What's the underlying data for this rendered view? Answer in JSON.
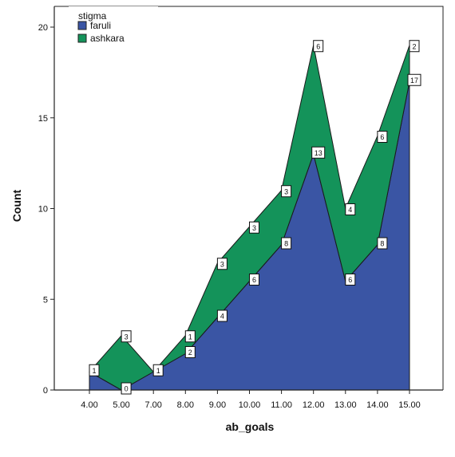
{
  "chart_data": {
    "type": "area",
    "stacked": true,
    "xlabel": "ab_goals",
    "ylabel": "Count",
    "ylim": [
      0,
      20
    ],
    "yticks": [
      "0",
      "5",
      "10",
      "15",
      "20"
    ],
    "categories": [
      "4.00",
      "5.00",
      "7.00",
      "8.00",
      "9.00",
      "10.00",
      "11.00",
      "12.00",
      "13.00",
      "14.00",
      "15.00"
    ],
    "legend": {
      "title": "stigma",
      "position": "top-left"
    },
    "series": [
      {
        "name": "faruli",
        "color": "#3a55a4",
        "values": [
          1,
          0,
          1,
          2,
          4,
          6,
          8,
          13,
          6,
          8,
          17
        ],
        "labels": [
          "1",
          "0",
          "1",
          "2",
          "4",
          "6",
          "8",
          "13",
          "6",
          "8",
          "17"
        ]
      },
      {
        "name": "ashkara",
        "color": "#14935a",
        "values": [
          0,
          3,
          0,
          1,
          3,
          3,
          3,
          6,
          4,
          6,
          2
        ],
        "labels": [
          "0",
          "3",
          "0",
          "1",
          "3",
          "3",
          "3",
          "6",
          "4",
          "6",
          "2"
        ]
      }
    ]
  }
}
